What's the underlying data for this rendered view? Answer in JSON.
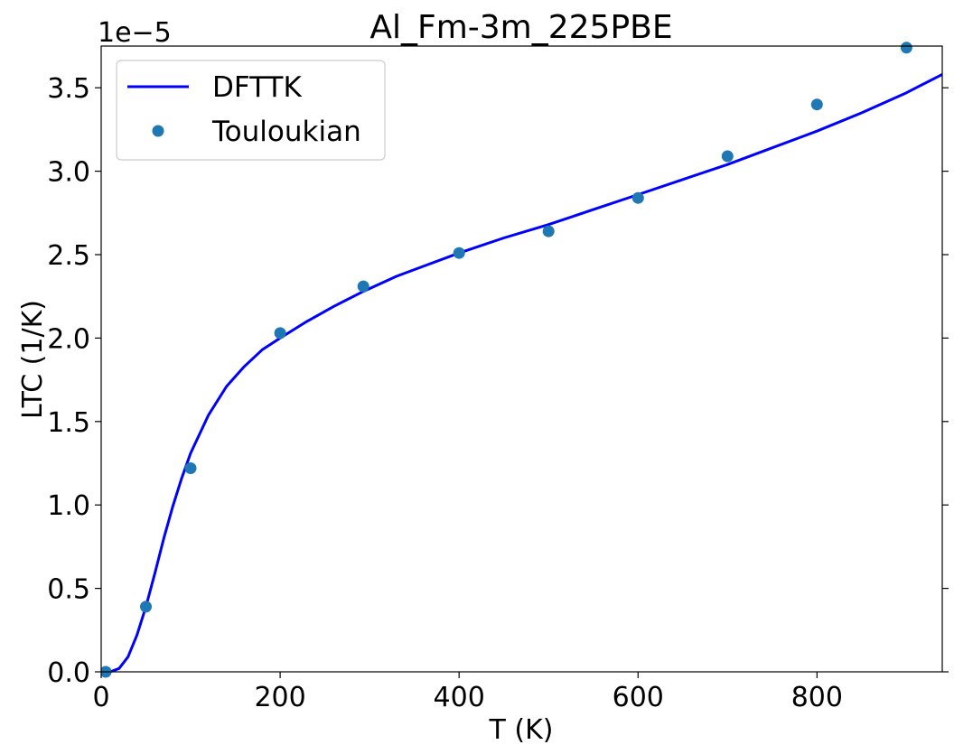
{
  "chart_data": {
    "type": "line",
    "title": "Al_Fm-3m_225PBE",
    "xlabel": "T (K)",
    "ylabel": "LTC (1/K)",
    "offset_text": "1e−5",
    "y_scale_factor": 1e-05,
    "xlim": [
      0,
      940
    ],
    "ylim": [
      0.0,
      3.75
    ],
    "xticks": [
      0,
      200,
      400,
      600,
      800
    ],
    "xtick_labels": [
      "0",
      "200",
      "400",
      "600",
      "800"
    ],
    "yticks": [
      0.0,
      0.5,
      1.0,
      1.5,
      2.0,
      2.5,
      3.0,
      3.5
    ],
    "ytick_labels": [
      "0.0",
      "0.5",
      "1.0",
      "1.5",
      "2.0",
      "2.5",
      "3.0",
      "3.5"
    ],
    "grid": false,
    "legend_position": "top-left",
    "series": [
      {
        "name": "DFTTK",
        "kind": "line",
        "color": "#0000ff",
        "x": [
          5,
          10,
          20,
          30,
          40,
          50,
          60,
          70,
          80,
          90,
          100,
          120,
          140,
          160,
          180,
          200,
          230,
          260,
          293,
          330,
          360,
          400,
          450,
          500,
          550,
          600,
          650,
          700,
          750,
          800,
          850,
          900,
          940
        ],
        "y": [
          0.0,
          0.0,
          0.02,
          0.09,
          0.22,
          0.39,
          0.59,
          0.8,
          0.99,
          1.16,
          1.31,
          1.54,
          1.71,
          1.83,
          1.93,
          2.0,
          2.1,
          2.19,
          2.28,
          2.37,
          2.43,
          2.51,
          2.6,
          2.68,
          2.77,
          2.86,
          2.95,
          3.04,
          3.14,
          3.24,
          3.35,
          3.47,
          3.58
        ]
      },
      {
        "name": "Touloukian",
        "kind": "scatter",
        "color": "#1f77b4",
        "x": [
          5,
          50,
          100,
          200,
          293,
          400,
          500,
          600,
          700,
          800,
          900
        ],
        "y": [
          0.0,
          0.39,
          1.22,
          2.03,
          2.31,
          2.51,
          2.64,
          2.84,
          3.09,
          3.4,
          3.74
        ]
      }
    ]
  }
}
